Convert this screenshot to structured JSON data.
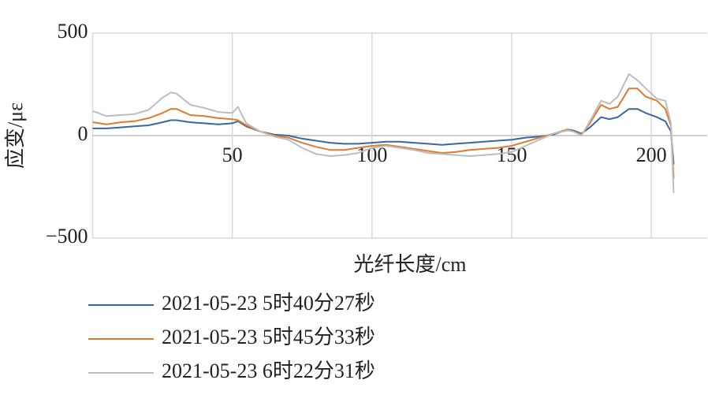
{
  "chart_data": {
    "type": "line",
    "xlabel": "光纤长度/cm",
    "ylabel": "应变/με",
    "x": [
      0,
      5,
      10,
      15,
      20,
      25,
      28,
      30,
      35,
      40,
      45,
      50,
      52,
      55,
      60,
      65,
      70,
      75,
      80,
      85,
      90,
      95,
      100,
      105,
      110,
      115,
      120,
      125,
      130,
      135,
      140,
      145,
      150,
      155,
      160,
      165,
      170,
      172,
      175,
      178,
      182,
      185,
      188,
      192,
      195,
      198,
      202,
      205,
      207,
      208
    ],
    "series": [
      {
        "name": "2021-05-23 5时40分27秒",
        "color": "#3a67a0",
        "values": [
          35,
          35,
          40,
          45,
          50,
          65,
          75,
          75,
          65,
          60,
          55,
          60,
          70,
          45,
          20,
          5,
          0,
          -15,
          -25,
          -35,
          -40,
          -40,
          -35,
          -30,
          -30,
          -35,
          -40,
          -45,
          -40,
          -35,
          -30,
          -25,
          -20,
          -10,
          -5,
          5,
          30,
          25,
          10,
          40,
          90,
          80,
          90,
          130,
          130,
          110,
          90,
          70,
          20,
          -140
        ]
      },
      {
        "name": "2021-05-23 5时45分33秒",
        "color": "#e07b2e",
        "values": [
          65,
          55,
          65,
          70,
          85,
          110,
          130,
          130,
          100,
          95,
          85,
          80,
          75,
          50,
          20,
          0,
          -10,
          -35,
          -55,
          -70,
          -70,
          -60,
          -50,
          -45,
          -55,
          -65,
          -75,
          -85,
          -80,
          -70,
          -65,
          -60,
          -50,
          -30,
          -10,
          10,
          30,
          20,
          5,
          60,
          150,
          130,
          140,
          230,
          230,
          190,
          170,
          130,
          50,
          -210
        ]
      },
      {
        "name": "2021-05-23 6时22分31秒",
        "color": "#bdbdbd",
        "values": [
          120,
          95,
          100,
          105,
          125,
          185,
          210,
          205,
          150,
          135,
          115,
          110,
          140,
          60,
          20,
          -5,
          -20,
          -60,
          -90,
          -100,
          -95,
          -85,
          -60,
          -50,
          -60,
          -70,
          -85,
          -90,
          -95,
          -100,
          -95,
          -90,
          -80,
          -50,
          -20,
          10,
          25,
          20,
          0,
          70,
          170,
          155,
          190,
          300,
          270,
          230,
          180,
          170,
          60,
          -280
        ]
      }
    ],
    "xlim": [
      0,
      220
    ],
    "xticks": [
      50,
      100,
      150,
      200
    ],
    "ylim": [
      -500,
      500
    ],
    "yticks": [
      500,
      0,
      {
        "value": -500,
        "label": "−500"
      }
    ],
    "grid": true,
    "legend": "bottom"
  }
}
